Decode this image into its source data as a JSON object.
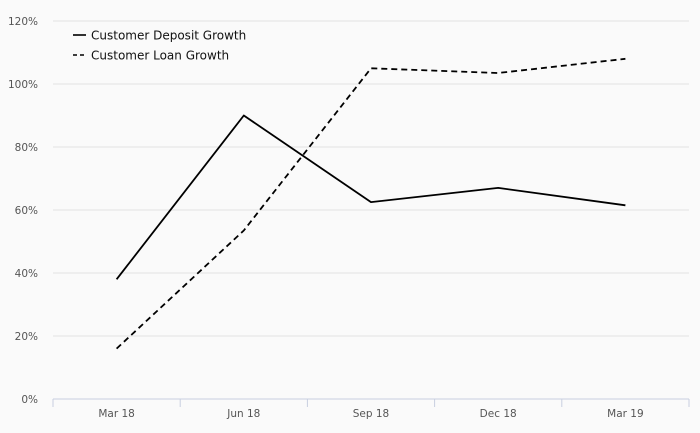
{
  "chart_data": {
    "type": "line",
    "title": "",
    "xlabel": "",
    "ylabel": "",
    "categories": [
      "Mar 18",
      "Jun 18",
      "Sep 18",
      "Dec 18",
      "Mar 19"
    ],
    "ylim": [
      0,
      120
    ],
    "yticks": [
      0,
      20,
      40,
      60,
      80,
      100,
      120
    ],
    "ytick_labels": [
      "0%",
      "20%",
      "40%",
      "60%",
      "80%",
      "100%",
      "120%"
    ],
    "grid": true,
    "legend_position": "top-left",
    "series": [
      {
        "name": "Customer Deposit Growth",
        "style": "solid",
        "color": "#000000",
        "values": [
          38,
          90,
          62.5,
          67,
          61.5
        ]
      },
      {
        "name": "Customer Loan Growth",
        "style": "dashed",
        "color": "#000000",
        "values": [
          16,
          53.5,
          105,
          103.5,
          108
        ]
      }
    ]
  }
}
